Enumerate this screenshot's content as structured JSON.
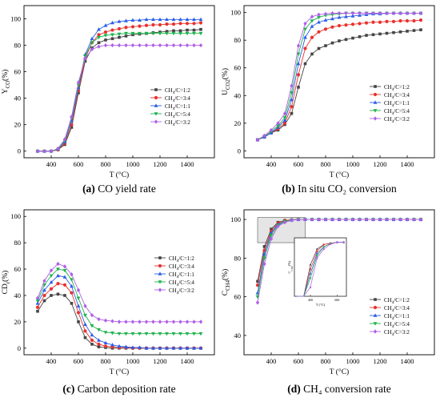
{
  "panels": [
    {
      "id": "a",
      "caption_letter": "(a)",
      "caption_text": " CO yield rate",
      "chart_data": {
        "type": "line",
        "ylabel": "Y_CO(%)",
        "xlabel": "T (°C)",
        "xlim": [
          200,
          1600
        ],
        "ylim": [
          -5,
          110
        ],
        "xticks": [
          400,
          600,
          800,
          1000,
          1200,
          1400
        ],
        "yticks": [
          0,
          20,
          40,
          60,
          80,
          100
        ],
        "legend_position": "middle-right",
        "x": [
          300,
          350,
          400,
          450,
          500,
          550,
          600,
          650,
          700,
          750,
          800,
          850,
          900,
          950,
          1000,
          1050,
          1100,
          1150,
          1200,
          1250,
          1300,
          1350,
          1400,
          1450,
          1500
        ],
        "series": [
          {
            "name": "CH4/C=1:2",
            "color": "#444444",
            "marker": "square",
            "values": [
              0,
              0,
              0,
              1,
              5,
              18,
              44,
              68,
              78,
              82,
              84,
              85,
              86,
              87,
              88,
              88.5,
              89,
              89.5,
              90,
              90.5,
              91,
              91,
              91.5,
              91.5,
              92
            ]
          },
          {
            "name": "CH4/C=3:4",
            "color": "#e8322e",
            "marker": "circle",
            "values": [
              0,
              0,
              0,
              1,
              6,
              20,
              46,
              70,
              82,
              88,
              90,
              91.5,
              92.5,
              93.5,
              94,
              94.5,
              95,
              95.5,
              95.5,
              96,
              96,
              96.5,
              96.5,
              96.5,
              97
            ]
          },
          {
            "name": "CH4/C=1:1",
            "color": "#2a5ee8",
            "marker": "triangle-up",
            "values": [
              0,
              0,
              0,
              1.5,
              7,
              23,
              48,
              73,
              85,
              92,
              95,
              97,
              98,
              98.5,
              99,
              99,
              99.5,
              99.5,
              99.5,
              99.5,
              99.5,
              99.5,
              99.5,
              99.5,
              99.5
            ]
          },
          {
            "name": "CH4/C=5:4",
            "color": "#1db34a",
            "marker": "triangle-down",
            "values": [
              0,
              0,
              0,
              1.5,
              8,
              25,
              50,
              72,
              82,
              86,
              87.5,
              88,
              88.5,
              89,
              89,
              89,
              89,
              89,
              89,
              89,
              89,
              89,
              89,
              89,
              89
            ]
          },
          {
            "name": "CH4/C=3:2",
            "color": "#b05ee8",
            "marker": "diamond",
            "values": [
              0,
              0,
              0,
              2,
              9,
              26,
              52,
              70,
              77,
              79,
              80,
              80,
              80,
              80,
              80,
              80,
              80,
              80,
              80,
              80,
              80,
              80,
              80,
              80,
              80
            ]
          }
        ]
      }
    },
    {
      "id": "b",
      "caption_letter": "(b)",
      "caption_text": " In situ CO₂ conversion",
      "chart_data": {
        "type": "line",
        "ylabel": "U_CO2(%)",
        "xlabel": "T (°C)",
        "xlim": [
          200,
          1600
        ],
        "ylim": [
          -5,
          105
        ],
        "xticks": [
          400,
          600,
          800,
          1000,
          1200,
          1400
        ],
        "yticks": [
          0,
          20,
          40,
          60,
          80,
          100
        ],
        "legend_position": "bottom-right",
        "x": [
          300,
          350,
          400,
          450,
          500,
          550,
          600,
          650,
          700,
          750,
          800,
          850,
          900,
          950,
          1000,
          1050,
          1100,
          1150,
          1200,
          1250,
          1300,
          1350,
          1400,
          1450,
          1500
        ],
        "series": [
          {
            "name": "CH4/C=1:2",
            "color": "#444444",
            "marker": "square",
            "values": [
              8,
              10,
              13,
              15,
              19,
              27,
              46,
              63,
              70,
              74,
              76,
              78,
              79.5,
              80.5,
              81.5,
              82.5,
              83.5,
              84,
              84.5,
              85,
              85.5,
              86,
              86.5,
              87,
              87.5
            ]
          },
          {
            "name": "CH4/C=3:4",
            "color": "#e8322e",
            "marker": "circle",
            "values": [
              8,
              10,
              13,
              16,
              20,
              32,
              55,
              74,
              82,
              86,
              88,
              89.5,
              90.5,
              91,
              91.5,
              92,
              92.5,
              93,
              93,
              93.5,
              93.5,
              94,
              94,
              94,
              94.5
            ]
          },
          {
            "name": "CH4/C=1:1",
            "color": "#2a5ee8",
            "marker": "triangle-up",
            "values": [
              8,
              10,
              13,
              17,
              22,
              37,
              63,
              82,
              90,
              93,
              94.5,
              95.5,
              96.5,
              97,
              97.5,
              98,
              98.5,
              99,
              99,
              99.5,
              99.5,
              99.5,
              99.5,
              99.5,
              99.5
            ]
          },
          {
            "name": "CH4/C=5:4",
            "color": "#1db34a",
            "marker": "triangle-down",
            "values": [
              8,
              10.5,
              14,
              18,
              24,
              42,
              70,
              88,
              94,
              96.5,
              98,
              98.5,
              99,
              99.5,
              99.5,
              99.5,
              99.5,
              99.5,
              99.5,
              99.5,
              99.5,
              99.5,
              99.5,
              99.5,
              99.5
            ]
          },
          {
            "name": "CH4/C=3:2",
            "color": "#b05ee8",
            "marker": "diamond",
            "values": [
              8,
              11,
              15,
              20,
              27,
              47,
              76,
              92,
              97,
              98.5,
              99,
              99.5,
              99.5,
              99.5,
              99.5,
              99.5,
              99.5,
              99.5,
              99.5,
              99.5,
              99.5,
              99.5,
              99.5,
              99.5,
              99.5
            ]
          }
        ]
      }
    },
    {
      "id": "c",
      "caption_letter": "(c)",
      "caption_text": " Carbon deposition rate",
      "chart_data": {
        "type": "line",
        "ylabel": "CD_r(%)",
        "xlabel": "T (°C)",
        "xlim": [
          200,
          1600
        ],
        "ylim": [
          -5,
          105
        ],
        "xticks": [
          400,
          600,
          800,
          1000,
          1200,
          1400
        ],
        "yticks": [
          0,
          20,
          40,
          60,
          80,
          100
        ],
        "legend_position": "middle-right",
        "x": [
          300,
          350,
          400,
          450,
          500,
          550,
          600,
          650,
          700,
          750,
          800,
          850,
          900,
          950,
          1000,
          1050,
          1100,
          1150,
          1200,
          1250,
          1300,
          1350,
          1400,
          1450,
          1500
        ],
        "series": [
          {
            "name": "CH4/C=1:2",
            "color": "#444444",
            "marker": "square",
            "values": [
              28,
              36,
              40,
              41,
              40,
              34,
              20,
              8,
              3,
              1,
              0.5,
              0,
              0,
              0,
              0,
              0,
              0,
              0,
              0,
              0,
              0,
              0,
              0,
              0,
              0
            ]
          },
          {
            "name": "CH4/C=3:4",
            "color": "#e8322e",
            "marker": "circle",
            "values": [
              31,
              40,
              45,
              49,
              48,
              42,
              27,
              13,
              6,
              3,
              1.5,
              1,
              0.5,
              0.5,
              0,
              0,
              0,
              0,
              0,
              0,
              0,
              0,
              0,
              0,
              0
            ]
          },
          {
            "name": "CH4/C=1:1",
            "color": "#2a5ee8",
            "marker": "triangle-up",
            "values": [
              34,
              44,
              50,
              55,
              54,
              47,
              32,
              18,
              10,
              6,
              4,
              2.5,
              1.5,
              1,
              0.5,
              0.5,
              0,
              0,
              0,
              0,
              0,
              0,
              0,
              0,
              0
            ]
          },
          {
            "name": "CH4/C=5:4",
            "color": "#1db34a",
            "marker": "triangle-down",
            "values": [
              36,
              48,
              55,
              60,
              59,
              52,
              38,
              25,
              17,
              14,
              12,
              11.5,
              11,
              11,
              11,
              11,
              11,
              11,
              11,
              11,
              11,
              11,
              11,
              11,
              11
            ]
          },
          {
            "name": "CH4/C=3:2",
            "color": "#b05ee8",
            "marker": "diamond",
            "values": [
              38,
              51,
              59,
              64,
              62,
              56,
              44,
              32,
              25,
              22,
              21,
              20.5,
              20,
              20,
              20,
              20,
              20,
              20,
              20,
              20,
              20,
              20,
              20,
              20,
              20
            ]
          }
        ]
      }
    },
    {
      "id": "d",
      "caption_letter": "(d)",
      "caption_text": " CH₄ conversion rate",
      "chart_data": {
        "type": "line",
        "ylabel": "C_CH4(%)",
        "xlabel": "T (°C)",
        "xlim": [
          200,
          1600
        ],
        "ylim": [
          30,
          105
        ],
        "xticks": [
          400,
          600,
          800,
          1000,
          1200,
          1400
        ],
        "yticks": [
          40,
          60,
          80,
          100
        ],
        "legend_position": "bottom-right",
        "x": [
          300,
          350,
          400,
          450,
          500,
          550,
          600,
          650,
          700,
          750,
          800,
          850,
          900,
          950,
          1000,
          1050,
          1100,
          1150,
          1200,
          1250,
          1300,
          1350,
          1400,
          1450,
          1500
        ],
        "series": [
          {
            "name": "CH4/C=1:2",
            "color": "#444444",
            "marker": "square",
            "values": [
              68,
              86,
              95,
              98.5,
              99.5,
              99.8,
              100,
              100,
              100,
              100,
              100,
              100,
              100,
              100,
              100,
              100,
              100,
              100,
              100,
              100,
              100,
              100,
              100,
              100,
              100
            ]
          },
          {
            "name": "CH4/C=3:4",
            "color": "#e8322e",
            "marker": "circle",
            "values": [
              66,
              84,
              94,
              98,
              99.5,
              99.8,
              100,
              100,
              100,
              100,
              100,
              100,
              100,
              100,
              100,
              100,
              100,
              100,
              100,
              100,
              100,
              100,
              100,
              100,
              100
            ]
          },
          {
            "name": "CH4/C=1:1",
            "color": "#2a5ee8",
            "marker": "triangle-up",
            "values": [
              62,
              82,
              93,
              97.5,
              99,
              99.7,
              100,
              100,
              100,
              100,
              100,
              100,
              100,
              100,
              100,
              100,
              100,
              100,
              100,
              100,
              100,
              100,
              100,
              100,
              100
            ]
          },
          {
            "name": "CH4/C=5:4",
            "color": "#1db34a",
            "marker": "triangle-down",
            "values": [
              60,
              80,
              92,
              97,
              99,
              99.7,
              100,
              100,
              100,
              100,
              100,
              100,
              100,
              100,
              100,
              100,
              100,
              100,
              100,
              100,
              100,
              100,
              100,
              100,
              100
            ]
          },
          {
            "name": "CH4/C=3:2",
            "color": "#b05ee8",
            "marker": "diamond",
            "values": [
              57,
              77,
              90,
              96.5,
              98.5,
              99.6,
              100,
              100,
              100,
              100,
              100,
              100,
              100,
              100,
              100,
              100,
              100,
              100,
              100,
              100,
              100,
              100,
              100,
              100,
              100
            ]
          }
        ],
        "inset": {
          "ylabel": "C_CH4(%)",
          "xlabel": "T (°C)",
          "xticks": [
            400,
            600
          ],
          "zoom_xlim": [
            300,
            650
          ],
          "zoom_ylim": [
            88,
            101
          ]
        }
      }
    }
  ]
}
